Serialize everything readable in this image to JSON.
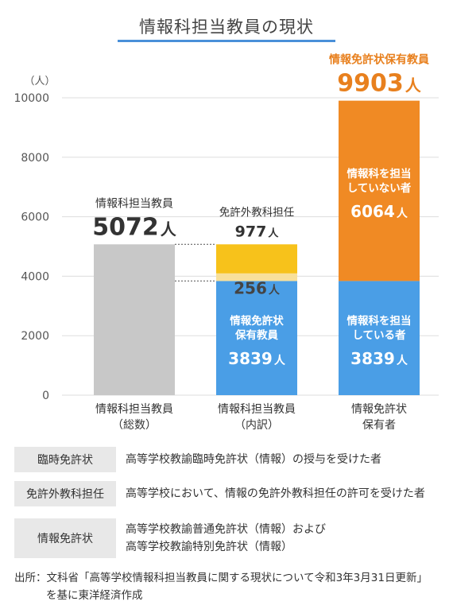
{
  "title": "情報科担当教員の現状",
  "colors": {
    "gray": "#c8c8c8",
    "blue": "#4a9ee6",
    "yellow": "#f7c21b",
    "light_yellow": "#f8e09a",
    "orange": "#f08a24",
    "orange_text": "#e8801e",
    "axis_text": "#555555",
    "grid": "#dddddd"
  },
  "chart_data": {
    "type": "bar",
    "stacked": true,
    "yunit": "（人）",
    "ylim": [
      0,
      10000
    ],
    "yticks": [
      0,
      2000,
      4000,
      6000,
      8000,
      10000
    ],
    "categories": [
      [
        "情報科担当教員",
        "（総数）"
      ],
      [
        "情報科担当教員",
        "（内訳）"
      ],
      [
        "情報免許状",
        "保有者"
      ]
    ],
    "bars": [
      {
        "segments": [
          {
            "value": 5072,
            "color": "gray"
          }
        ],
        "top_label": {
          "name": "情報科担当教員",
          "value": "5072",
          "unit": "人",
          "color": "dark"
        }
      },
      {
        "segments": [
          {
            "value": 3839,
            "color": "blue",
            "label": [
              "情報免許状",
              "保有教員"
            ],
            "value_label": "3839",
            "unit": "人"
          },
          {
            "value": 256,
            "color": "light_yellow",
            "label": [
              "臨時免許状"
            ],
            "value_label": "256",
            "unit": "人",
            "dark_text": true
          },
          {
            "value": 977,
            "color": "yellow"
          }
        ],
        "top_label": {
          "name": "免許外教科担任",
          "value": "977",
          "unit": "人",
          "color": "dark",
          "small": true
        }
      },
      {
        "segments": [
          {
            "value": 3839,
            "color": "blue",
            "label": [
              "情報科を担当",
              "している者"
            ],
            "value_label": "3839",
            "unit": "人"
          },
          {
            "value": 6064,
            "color": "orange",
            "label": [
              "情報科を担当",
              "していない者"
            ],
            "value_label": "6064",
            "unit": "人"
          }
        ],
        "top_label": {
          "name": "情報免許状保有教員",
          "value": "9903",
          "unit": "人",
          "color": "orange"
        }
      }
    ]
  },
  "legend": [
    {
      "key": "臨時免許状",
      "desc": [
        "高等学校教諭臨時免許状（情報）の授与を受けた者"
      ]
    },
    {
      "key": "免許外教科担任",
      "desc": [
        "高等学校において、情報の免許外教科担任の許可を受けた者"
      ]
    },
    {
      "key": "情報免許状",
      "desc": [
        "高等学校教諭普通免許状（情報）および",
        "高等学校教諭特別免許状（情報）"
      ]
    }
  ],
  "source": [
    "出所：文科省「高等学校情報科担当教員に関する現状について令和3年3月31日更新」",
    "を基に東洋経済作成"
  ]
}
